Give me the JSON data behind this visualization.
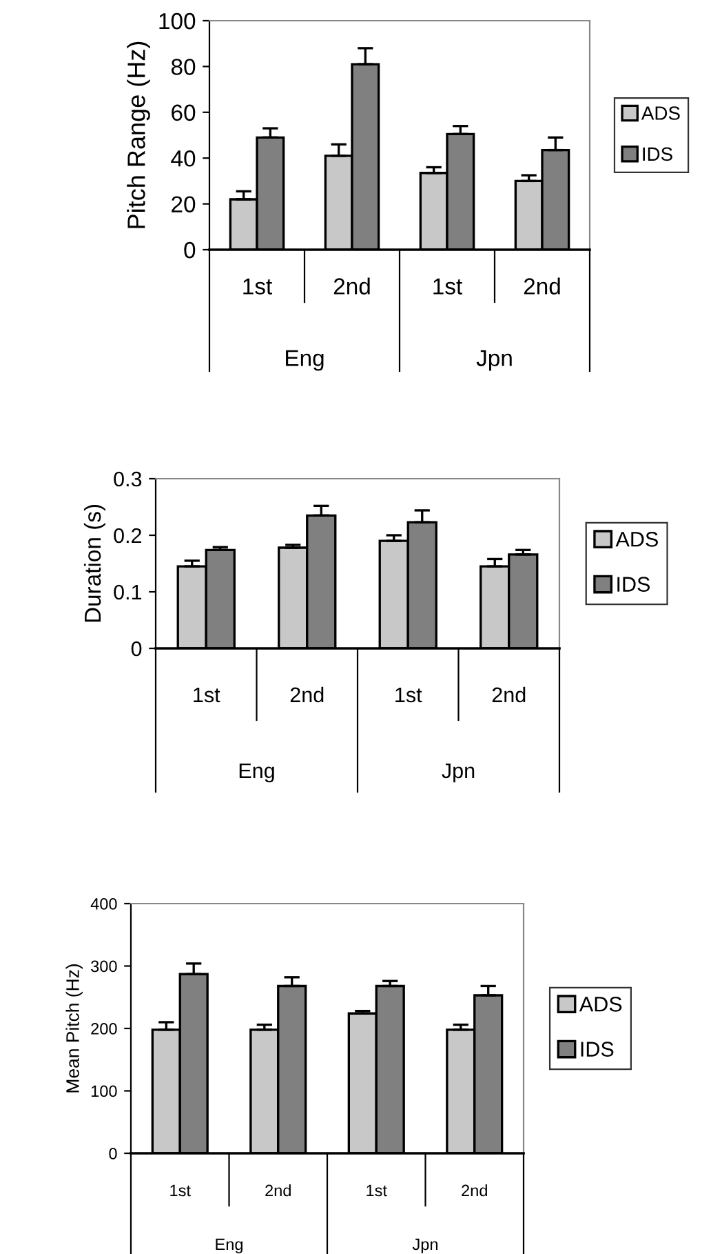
{
  "chart_data": [
    {
      "type": "bar",
      "categories": [
        "1st",
        "2nd",
        "1st",
        "2nd"
      ],
      "annotations": [
        "Eng",
        "Jpn"
      ],
      "ylabel": "Pitch Range (Hz)",
      "ylim": [
        0,
        100
      ],
      "yticks": [
        0,
        20,
        40,
        60,
        80,
        100
      ],
      "grid": false,
      "legend": "right",
      "series": [
        {
          "name": "ADS",
          "color": "#c8c8c8",
          "values": [
            22,
            41,
            33.5,
            30
          ],
          "errors": [
            [
              22,
              25.5
            ],
            [
              41,
              46
            ],
            [
              33.5,
              36
            ],
            [
              30,
              32.5
            ]
          ]
        },
        {
          "name": "IDS",
          "color": "#808080",
          "values": [
            49,
            81,
            50.5,
            43.5
          ],
          "errors": [
            [
              49,
              53
            ],
            [
              81,
              88
            ],
            [
              50.5,
              54
            ],
            [
              43.5,
              49
            ]
          ]
        }
      ]
    },
    {
      "type": "bar",
      "categories": [
        "1st",
        "2nd",
        "1st",
        "2nd"
      ],
      "annotations": [
        "Eng",
        "Jpn"
      ],
      "ylabel": "Duration (s)",
      "ylim": [
        0,
        0.3
      ],
      "yticks": [
        0,
        0.1,
        0.2,
        0.3
      ],
      "grid": false,
      "legend": "right",
      "series": [
        {
          "name": "ADS",
          "color": "#c8c8c8",
          "values": [
            0.145,
            0.178,
            0.19,
            0.145
          ],
          "errors": [
            [
              0.145,
              0.155
            ],
            [
              0.178,
              0.183
            ],
            [
              0.19,
              0.2
            ],
            [
              0.145,
              0.158
            ]
          ]
        },
        {
          "name": "IDS",
          "color": "#808080",
          "values": [
            0.174,
            0.235,
            0.223,
            0.166
          ],
          "errors": [
            [
              0.174,
              0.179
            ],
            [
              0.235,
              0.252
            ],
            [
              0.223,
              0.244
            ],
            [
              0.166,
              0.174
            ]
          ]
        }
      ]
    },
    {
      "type": "bar",
      "categories": [
        "1st",
        "2nd",
        "1st",
        "2nd"
      ],
      "annotations": [
        "Eng",
        "Jpn"
      ],
      "ylabel": "Mean Pitch (Hz)",
      "ylim": [
        0,
        400
      ],
      "yticks": [
        0,
        100,
        200,
        300,
        400
      ],
      "grid": false,
      "legend": "right",
      "series": [
        {
          "name": "ADS",
          "color": "#c8c8c8",
          "values": [
            198,
            198,
            224,
            198
          ],
          "errors": [
            [
              198,
              210
            ],
            [
              198,
              206
            ],
            [
              224,
              228
            ],
            [
              198,
              206
            ]
          ]
        },
        {
          "name": "IDS",
          "color": "#808080",
          "values": [
            287,
            268,
            268,
            253
          ],
          "errors": [
            [
              287,
              304
            ],
            [
              268,
              282
            ],
            [
              268,
              276
            ],
            [
              253,
              268
            ]
          ]
        }
      ]
    }
  ]
}
